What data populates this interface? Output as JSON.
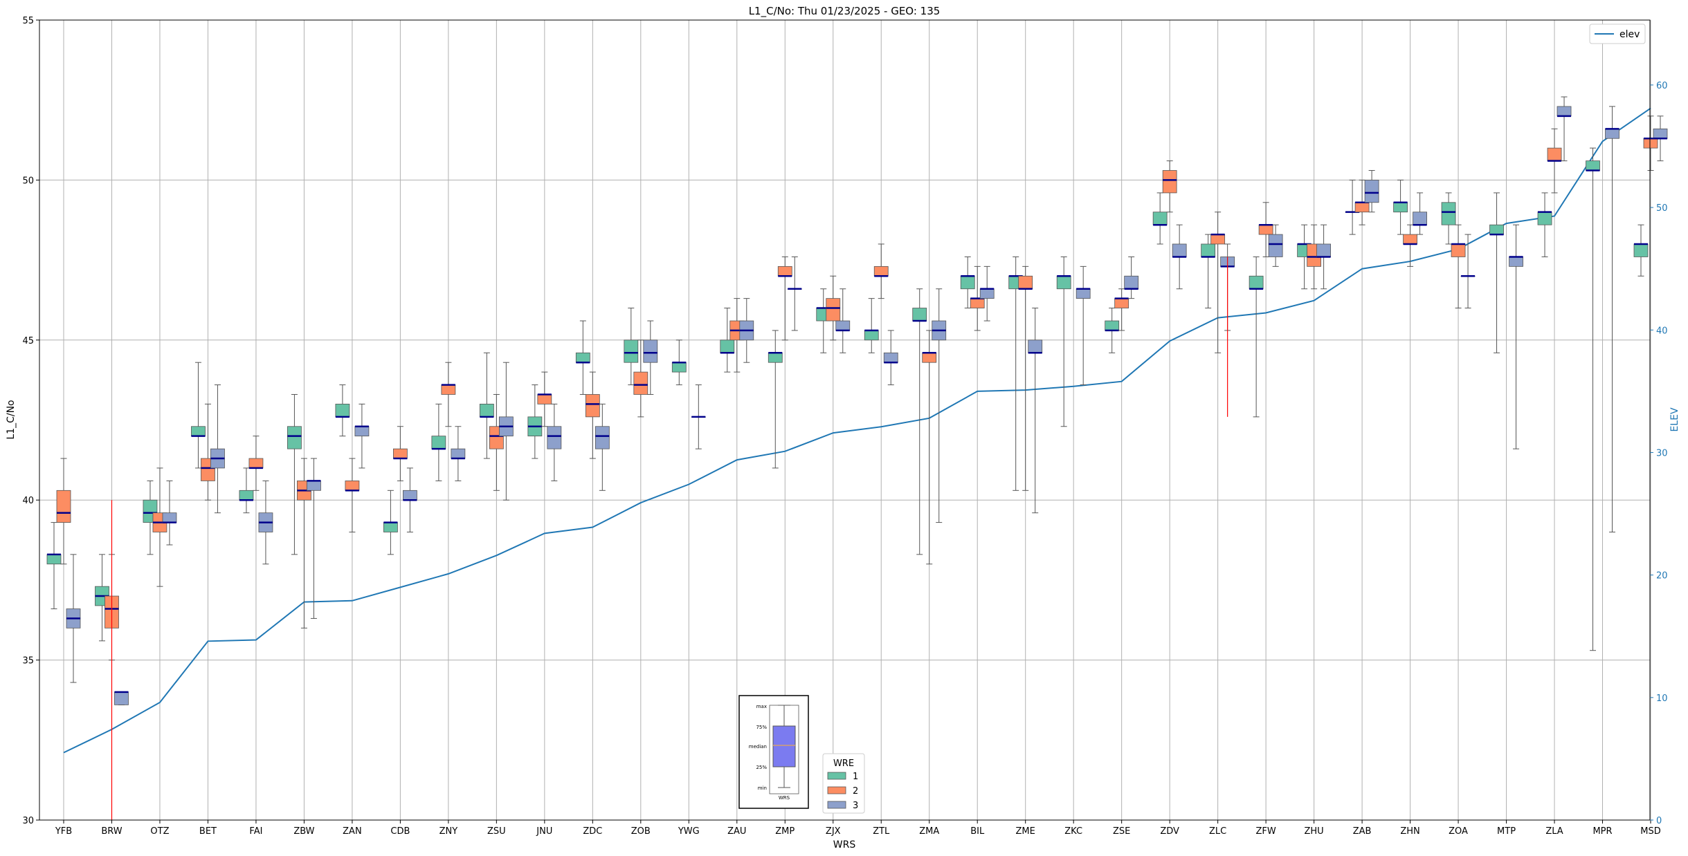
{
  "chart_data": {
    "type": "box",
    "title": "L1_C/No: Thu 01/23/2025 - GEO: 135",
    "xlabel": "WRS",
    "ylabel": "L1_C/No",
    "y2label": "ELEV",
    "ylim": [
      30,
      55
    ],
    "y2lim": [
      0,
      65.3
    ],
    "yticks": [
      "30",
      "35",
      "40",
      "45",
      "50",
      "55"
    ],
    "y2ticks": [
      "0",
      "10",
      "20",
      "30",
      "40",
      "50",
      "60"
    ],
    "grid": true,
    "categories": [
      "YFB",
      "BRW",
      "OTZ",
      "BET",
      "FAI",
      "ZBW",
      "ZAN",
      "CDB",
      "ZNY",
      "ZSU",
      "JNU",
      "ZDC",
      "ZOB",
      "YWG",
      "ZAU",
      "ZMP",
      "ZJX",
      "ZTL",
      "ZMA",
      "BIL",
      "ZME",
      "ZKC",
      "ZSE",
      "ZDV",
      "ZLC",
      "ZFW",
      "ZHU",
      "ZAB",
      "ZHN",
      "ZOA",
      "MTP",
      "ZLA",
      "MPR",
      "MSD"
    ],
    "legend": {
      "title": "WRE",
      "labels": [
        "1",
        "2",
        "3"
      ],
      "position": "bottom-center"
    },
    "line_legend": {
      "label": "elev",
      "position": "top-right"
    },
    "colors": {
      "wre1": "#66c2a5",
      "wre2": "#fc8d62",
      "wre3": "#8da0cb",
      "median": "#00008b",
      "elev": "#1f77b4",
      "outlier": "#ff0000"
    },
    "key": {
      "labels": [
        "max",
        "75%",
        "median",
        "25%",
        "min"
      ],
      "xlabel": "WRS",
      "box_color": "#7b7bf0",
      "median_color": "#d4a070"
    },
    "elev": [
      5.5,
      7.4,
      9.6,
      14.6,
      14.7,
      17.8,
      17.9,
      19.0,
      20.1,
      21.6,
      23.4,
      23.9,
      25.9,
      27.4,
      29.4,
      30.1,
      31.6,
      32.1,
      32.8,
      35.0,
      35.1,
      35.4,
      35.8,
      39.1,
      41.0,
      41.4,
      42.4,
      45.0,
      45.6,
      46.6,
      48.7,
      49.3,
      55.4,
      58.1
    ],
    "series": [
      {
        "name": "1",
        "boxes": [
          {
            "cat": "YFB",
            "min": 36.6,
            "q1": 38.0,
            "median": 38.3,
            "q3": 38.3,
            "max": 39.3
          },
          {
            "cat": "BRW",
            "min": 35.6,
            "q1": 36.7,
            "median": 37.0,
            "q3": 37.3,
            "max": 38.3
          },
          {
            "cat": "OTZ",
            "min": 38.3,
            "q1": 39.3,
            "median": 39.6,
            "q3": 40.0,
            "max": 40.6
          },
          {
            "cat": "BET",
            "min": 41.0,
            "q1": 42.0,
            "median": 42.0,
            "q3": 42.3,
            "max": 44.3
          },
          {
            "cat": "FAI",
            "min": 39.6,
            "q1": 40.0,
            "median": 40.0,
            "q3": 40.3,
            "max": 41.0
          },
          {
            "cat": "ZBW",
            "min": 38.3,
            "q1": 41.6,
            "median": 42.0,
            "q3": 42.3,
            "max": 43.3
          },
          {
            "cat": "ZAN",
            "min": 42.0,
            "q1": 42.6,
            "median": 42.6,
            "q3": 43.0,
            "max": 43.6
          },
          {
            "cat": "CDB",
            "min": 38.3,
            "q1": 39.0,
            "median": 39.3,
            "q3": 39.3,
            "max": 40.3
          },
          {
            "cat": "ZNY",
            "min": 40.6,
            "q1": 41.6,
            "median": 41.6,
            "q3": 42.0,
            "max": 43.0
          },
          {
            "cat": "ZSU",
            "min": 41.3,
            "q1": 42.6,
            "median": 42.6,
            "q3": 43.0,
            "max": 44.6
          },
          {
            "cat": "JNU",
            "min": 41.3,
            "q1": 42.0,
            "median": 42.3,
            "q3": 42.6,
            "max": 43.6
          },
          {
            "cat": "ZDC",
            "min": 43.3,
            "q1": 44.3,
            "median": 44.3,
            "q3": 44.6,
            "max": 45.6
          },
          {
            "cat": "ZOB",
            "min": 43.6,
            "q1": 44.3,
            "median": 44.6,
            "q3": 45.0,
            "max": 46.0
          },
          {
            "cat": "YWG",
            "min": 43.6,
            "q1": 44.0,
            "median": 44.3,
            "q3": 44.3,
            "max": 45.0
          },
          {
            "cat": "ZAU",
            "min": 44.0,
            "q1": 44.6,
            "median": 44.6,
            "q3": 45.0,
            "max": 46.0
          },
          {
            "cat": "ZMP",
            "min": 41.0,
            "q1": 44.3,
            "median": 44.6,
            "q3": 44.6,
            "max": 45.3
          },
          {
            "cat": "ZJX",
            "min": 44.6,
            "q1": 45.6,
            "median": 46.0,
            "q3": 46.0,
            "max": 46.6
          },
          {
            "cat": "ZTL",
            "min": 44.6,
            "q1": 45.0,
            "median": 45.3,
            "q3": 45.3,
            "max": 46.3
          },
          {
            "cat": "ZMA",
            "min": 38.3,
            "q1": 45.6,
            "median": 45.6,
            "q3": 46.0,
            "max": 46.6
          },
          {
            "cat": "BIL",
            "min": 46.0,
            "q1": 46.6,
            "median": 47.0,
            "q3": 47.0,
            "max": 47.6
          },
          {
            "cat": "ZME",
            "min": 40.3,
            "q1": 46.6,
            "median": 47.0,
            "q3": 47.0,
            "max": 47.6
          },
          {
            "cat": "ZKC",
            "min": 42.3,
            "q1": 46.6,
            "median": 47.0,
            "q3": 47.0,
            "max": 47.6
          },
          {
            "cat": "ZSE",
            "min": 44.6,
            "q1": 45.3,
            "median": 45.3,
            "q3": 45.6,
            "max": 46.0
          },
          {
            "cat": "ZDV",
            "min": 48.0,
            "q1": 48.6,
            "median": 48.6,
            "q3": 49.0,
            "max": 49.6
          },
          {
            "cat": "ZLC",
            "min": 46.0,
            "q1": 47.6,
            "median": 47.6,
            "q3": 48.0,
            "max": 48.3
          },
          {
            "cat": "ZFW",
            "min": 42.6,
            "q1": 46.6,
            "median": 46.6,
            "q3": 47.0,
            "max": 47.6
          },
          {
            "cat": "ZHU",
            "min": 46.6,
            "q1": 47.6,
            "median": 48.0,
            "q3": 48.0,
            "max": 48.6
          },
          {
            "cat": "ZAB",
            "min": 48.3,
            "q1": 49.0,
            "median": 49.0,
            "q3": 49.0,
            "max": 50.0
          },
          {
            "cat": "ZHN",
            "min": 48.3,
            "q1": 49.0,
            "median": 49.3,
            "q3": 49.3,
            "max": 50.0
          },
          {
            "cat": "ZOA",
            "min": 48.0,
            "q1": 48.6,
            "median": 49.0,
            "q3": 49.3,
            "max": 49.6
          },
          {
            "cat": "MTP",
            "min": 44.6,
            "q1": 48.3,
            "median": 48.3,
            "q3": 48.6,
            "max": 49.6
          },
          {
            "cat": "ZLA",
            "min": 47.6,
            "q1": 48.6,
            "median": 49.0,
            "q3": 49.0,
            "max": 49.6
          },
          {
            "cat": "MPR",
            "min": 35.3,
            "q1": 50.3,
            "median": 50.3,
            "q3": 50.6,
            "max": 51.0
          },
          {
            "cat": "MSD",
            "min": 47.0,
            "q1": 47.6,
            "median": 48.0,
            "q3": 48.0,
            "max": 48.6
          }
        ]
      },
      {
        "name": "2",
        "boxes": [
          {
            "cat": "YFB",
            "min": 38.0,
            "q1": 39.3,
            "median": 39.6,
            "q3": 40.3,
            "max": 41.3
          },
          {
            "cat": "BRW",
            "min": 35.0,
            "q1": 36.0,
            "median": 36.6,
            "q3": 37.0,
            "max": 38.3
          },
          {
            "cat": "OTZ",
            "min": 37.3,
            "q1": 39.0,
            "median": 39.3,
            "q3": 39.6,
            "max": 41.0
          },
          {
            "cat": "BET",
            "min": 40.0,
            "q1": 40.6,
            "median": 41.0,
            "q3": 41.3,
            "max": 43.0
          },
          {
            "cat": "FAI",
            "min": 40.3,
            "q1": 41.0,
            "median": 41.0,
            "q3": 41.3,
            "max": 42.0
          },
          {
            "cat": "ZBW",
            "min": 36.0,
            "q1": 40.0,
            "median": 40.3,
            "q3": 40.6,
            "max": 41.3
          },
          {
            "cat": "ZAN",
            "min": 39.0,
            "q1": 40.3,
            "median": 40.3,
            "q3": 40.6,
            "max": 41.3
          },
          {
            "cat": "CDB",
            "min": 40.6,
            "q1": 41.3,
            "median": 41.3,
            "q3": 41.6,
            "max": 42.3
          },
          {
            "cat": "ZNY",
            "min": 42.3,
            "q1": 43.3,
            "median": 43.6,
            "q3": 43.6,
            "max": 44.3
          },
          {
            "cat": "ZSU",
            "min": 40.3,
            "q1": 41.6,
            "median": 42.0,
            "q3": 42.3,
            "max": 43.3
          },
          {
            "cat": "JNU",
            "min": 42.3,
            "q1": 43.0,
            "median": 43.3,
            "q3": 43.3,
            "max": 44.0
          },
          {
            "cat": "ZDC",
            "min": 41.3,
            "q1": 42.6,
            "median": 43.0,
            "q3": 43.3,
            "max": 44.0
          },
          {
            "cat": "ZOB",
            "min": 42.6,
            "q1": 43.3,
            "median": 43.6,
            "q3": 44.0,
            "max": 45.0
          },
          {
            "cat": "ZAU",
            "min": 44.0,
            "q1": 45.0,
            "median": 45.3,
            "q3": 45.6,
            "max": 46.3
          },
          {
            "cat": "ZMP",
            "min": 45.0,
            "q1": 47.0,
            "median": 47.0,
            "q3": 47.3,
            "max": 47.6
          },
          {
            "cat": "ZJX",
            "min": 45.0,
            "q1": 45.6,
            "median": 46.0,
            "q3": 46.3,
            "max": 47.0
          },
          {
            "cat": "ZTL",
            "min": 46.3,
            "q1": 47.0,
            "median": 47.0,
            "q3": 47.3,
            "max": 48.0
          },
          {
            "cat": "ZMA",
            "min": 38.0,
            "q1": 44.3,
            "median": 44.6,
            "q3": 44.6,
            "max": 45.3
          },
          {
            "cat": "BIL",
            "min": 45.3,
            "q1": 46.0,
            "median": 46.3,
            "q3": 46.3,
            "max": 47.3
          },
          {
            "cat": "ZME",
            "min": 40.3,
            "q1": 46.6,
            "median": 46.6,
            "q3": 47.0,
            "max": 47.3
          },
          {
            "cat": "ZSE",
            "min": 45.3,
            "q1": 46.0,
            "median": 46.3,
            "q3": 46.3,
            "max": 46.6
          },
          {
            "cat": "ZDV",
            "min": 49.0,
            "q1": 49.6,
            "median": 50.0,
            "q3": 50.3,
            "max": 50.6
          },
          {
            "cat": "ZLC",
            "min": 44.6,
            "q1": 48.0,
            "median": 48.3,
            "q3": 48.3,
            "max": 49.0
          },
          {
            "cat": "ZFW",
            "min": 47.6,
            "q1": 48.3,
            "median": 48.6,
            "q3": 48.6,
            "max": 49.3
          },
          {
            "cat": "ZHU",
            "min": 46.6,
            "q1": 47.3,
            "median": 47.6,
            "q3": 48.0,
            "max": 48.6
          },
          {
            "cat": "ZAB",
            "min": 48.6,
            "q1": 49.0,
            "median": 49.3,
            "q3": 49.3,
            "max": 50.0
          },
          {
            "cat": "ZHN",
            "min": 47.3,
            "q1": 48.0,
            "median": 48.0,
            "q3": 48.3,
            "max": 48.6
          },
          {
            "cat": "ZOA",
            "min": 46.0,
            "q1": 47.6,
            "median": 48.0,
            "q3": 48.0,
            "max": 48.6
          },
          {
            "cat": "ZLA",
            "min": 49.6,
            "q1": 50.6,
            "median": 50.6,
            "q3": 51.0,
            "max": 51.6
          },
          {
            "cat": "MSD",
            "min": 50.3,
            "q1": 51.0,
            "median": 51.3,
            "q3": 51.3,
            "max": 52.0
          }
        ]
      },
      {
        "name": "3",
        "boxes": [
          {
            "cat": "YFB",
            "min": 34.3,
            "q1": 36.0,
            "median": 36.3,
            "q3": 36.6,
            "max": 38.3
          },
          {
            "cat": "BRW",
            "min": 33.6,
            "q1": 33.6,
            "median": 34.0,
            "q3": 34.0,
            "max": 34.0
          },
          {
            "cat": "OTZ",
            "min": 38.6,
            "q1": 39.3,
            "median": 39.3,
            "q3": 39.6,
            "max": 40.6
          },
          {
            "cat": "BET",
            "min": 39.6,
            "q1": 41.0,
            "median": 41.3,
            "q3": 41.6,
            "max": 43.6
          },
          {
            "cat": "FAI",
            "min": 38.0,
            "q1": 39.0,
            "median": 39.3,
            "q3": 39.6,
            "max": 40.6
          },
          {
            "cat": "ZBW",
            "min": 36.3,
            "q1": 40.3,
            "median": 40.6,
            "q3": 40.6,
            "max": 41.3
          },
          {
            "cat": "ZAN",
            "min": 41.0,
            "q1": 42.0,
            "median": 42.3,
            "q3": 42.3,
            "max": 43.0
          },
          {
            "cat": "CDB",
            "min": 39.0,
            "q1": 40.0,
            "median": 40.0,
            "q3": 40.3,
            "max": 41.0
          },
          {
            "cat": "ZNY",
            "min": 40.6,
            "q1": 41.3,
            "median": 41.3,
            "q3": 41.6,
            "max": 42.3
          },
          {
            "cat": "ZSU",
            "min": 40.0,
            "q1": 42.0,
            "median": 42.3,
            "q3": 42.6,
            "max": 44.3
          },
          {
            "cat": "JNU",
            "min": 40.6,
            "q1": 41.6,
            "median": 42.0,
            "q3": 42.3,
            "max": 43.0
          },
          {
            "cat": "ZDC",
            "min": 40.3,
            "q1": 41.6,
            "median": 42.0,
            "q3": 42.3,
            "max": 43.0
          },
          {
            "cat": "ZOB",
            "min": 43.3,
            "q1": 44.3,
            "median": 44.6,
            "q3": 45.0,
            "max": 45.6
          },
          {
            "cat": "YWG",
            "min": 41.6,
            "q1": 42.6,
            "median": 42.6,
            "q3": 42.6,
            "max": 43.6
          },
          {
            "cat": "ZAU",
            "min": 44.3,
            "q1": 45.0,
            "median": 45.3,
            "q3": 45.6,
            "max": 46.3
          },
          {
            "cat": "ZMP",
            "min": 45.3,
            "q1": 46.6,
            "median": 46.6,
            "q3": 46.6,
            "max": 47.6
          },
          {
            "cat": "ZJX",
            "min": 44.6,
            "q1": 45.3,
            "median": 45.3,
            "q3": 45.6,
            "max": 46.6
          },
          {
            "cat": "ZTL",
            "min": 43.6,
            "q1": 44.3,
            "median": 44.3,
            "q3": 44.6,
            "max": 45.3
          },
          {
            "cat": "ZMA",
            "min": 39.3,
            "q1": 45.0,
            "median": 45.3,
            "q3": 45.6,
            "max": 46.6
          },
          {
            "cat": "BIL",
            "min": 45.6,
            "q1": 46.3,
            "median": 46.6,
            "q3": 46.6,
            "max": 47.3
          },
          {
            "cat": "ZME",
            "min": 39.6,
            "q1": 44.6,
            "median": 44.6,
            "q3": 45.0,
            "max": 46.0
          },
          {
            "cat": "ZKC",
            "min": 43.6,
            "q1": 46.3,
            "median": 46.6,
            "q3": 46.6,
            "max": 47.3
          },
          {
            "cat": "ZSE",
            "min": 46.3,
            "q1": 46.6,
            "median": 46.6,
            "q3": 47.0,
            "max": 47.6
          },
          {
            "cat": "ZDV",
            "min": 46.6,
            "q1": 47.6,
            "median": 47.6,
            "q3": 48.0,
            "max": 48.6
          },
          {
            "cat": "ZLC",
            "min": 45.3,
            "q1": 47.3,
            "median": 47.3,
            "q3": 47.6,
            "max": 48.0
          },
          {
            "cat": "ZFW",
            "min": 47.3,
            "q1": 47.6,
            "median": 48.0,
            "q3": 48.3,
            "max": 48.6
          },
          {
            "cat": "ZHU",
            "min": 46.6,
            "q1": 47.6,
            "median": 47.6,
            "q3": 48.0,
            "max": 48.6
          },
          {
            "cat": "ZAB",
            "min": 49.0,
            "q1": 49.3,
            "median": 49.6,
            "q3": 50.0,
            "max": 50.3
          },
          {
            "cat": "ZHN",
            "min": 48.3,
            "q1": 48.6,
            "median": 48.6,
            "q3": 49.0,
            "max": 49.6
          },
          {
            "cat": "ZOA",
            "min": 46.0,
            "q1": 47.0,
            "median": 47.0,
            "q3": 47.0,
            "max": 48.3
          },
          {
            "cat": "MTP",
            "min": 41.6,
            "q1": 47.3,
            "median": 47.6,
            "q3": 47.6,
            "max": 48.6
          },
          {
            "cat": "ZLA",
            "min": 50.6,
            "q1": 52.0,
            "median": 52.0,
            "q3": 52.3,
            "max": 52.6
          },
          {
            "cat": "MPR",
            "min": 39.0,
            "q1": 51.3,
            "median": 51.6,
            "q3": 51.6,
            "max": 52.3
          },
          {
            "cat": "MSD",
            "min": 50.6,
            "q1": 51.3,
            "median": 51.3,
            "q3": 51.6,
            "max": 52.0
          }
        ]
      }
    ],
    "outlier_lines": [
      {
        "cat": "BRW",
        "series": "2",
        "min": 30.0,
        "max": 40.0
      },
      {
        "cat": "ZLC",
        "series": "3",
        "min": 42.6,
        "max": 47.6
      }
    ]
  }
}
